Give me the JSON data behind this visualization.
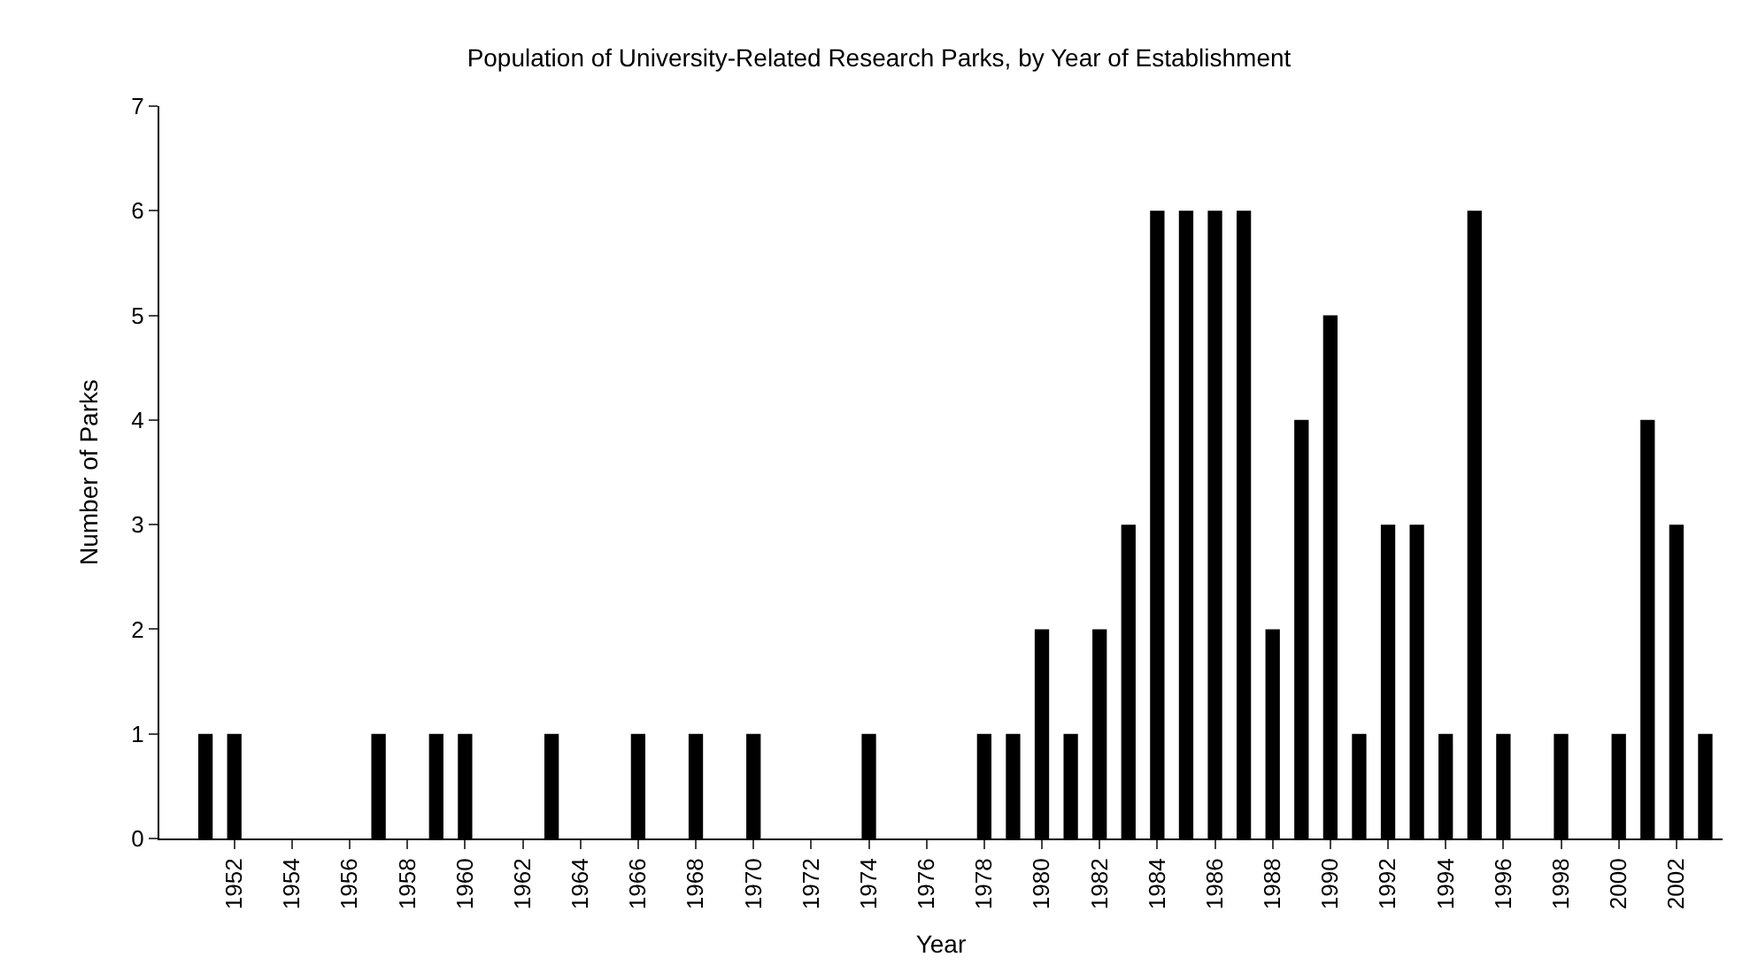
{
  "chart_data": {
    "type": "bar",
    "title": "Population of University-Related Research Parks, by Year of Establishment",
    "xlabel": "Year",
    "ylabel": "Number of Parks",
    "x": [
      1951,
      1952,
      1957,
      1959,
      1960,
      1963,
      1966,
      1968,
      1970,
      1974,
      1978,
      1979,
      1980,
      1981,
      1982,
      1983,
      1984,
      1985,
      1986,
      1987,
      1988,
      1989,
      1990,
      1991,
      1992,
      1993,
      1994,
      1995,
      1996,
      1998,
      2000,
      2001,
      2002,
      2003
    ],
    "values": [
      1,
      1,
      1,
      1,
      1,
      1,
      1,
      1,
      1,
      1,
      1,
      1,
      2,
      1,
      2,
      3,
      6,
      6,
      6,
      6,
      2,
      4,
      5,
      1,
      3,
      3,
      1,
      6,
      1,
      1,
      1,
      4,
      3,
      1
    ],
    "color": "#000000",
    "xlim": [
      1949.4,
      2003.6
    ],
    "xticks": [
      1952,
      1954,
      1956,
      1958,
      1960,
      1962,
      1964,
      1966,
      1968,
      1970,
      1972,
      1974,
      1976,
      1978,
      1980,
      1982,
      1984,
      1986,
      1988,
      1990,
      1992,
      1994,
      1996,
      1998,
      2000,
      2002
    ],
    "ylim": [
      0,
      7
    ],
    "yticks": [
      0,
      1,
      2,
      3,
      4,
      5,
      6,
      7
    ]
  }
}
